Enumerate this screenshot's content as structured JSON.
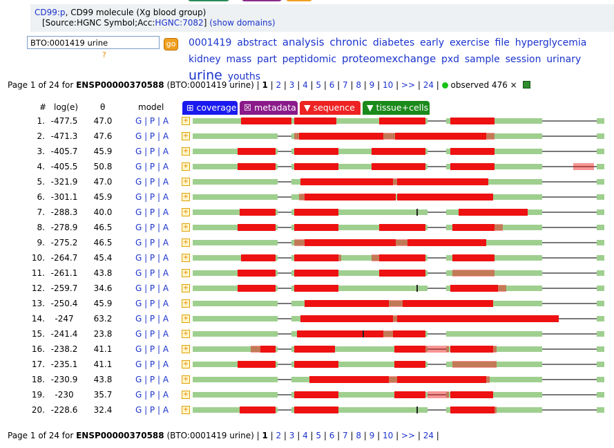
{
  "gene_link": "CD99:p",
  "gene_desc": ", CD99 molecule (Xg blood group)",
  "source_prefix": "[Source:HGNC Symbol;Acc:",
  "source_link": "HGNC:7082",
  "source_suffix": "]",
  "show_domains": "(show domains)",
  "search_value": "BTO:0001419 urine",
  "go_label": "go",
  "help_label": "?",
  "cloud": [
    {
      "text": "0001419",
      "size": 14
    },
    {
      "text": "abstract",
      "size": 14
    },
    {
      "text": "analysis",
      "size": 15
    },
    {
      "text": "chronic",
      "size": 15
    },
    {
      "text": "diabetes",
      "size": 14
    },
    {
      "text": "early",
      "size": 14
    },
    {
      "text": "exercise",
      "size": 14
    },
    {
      "text": "file",
      "size": 14
    },
    {
      "text": "hyperglycemia",
      "size": 14
    },
    {
      "text": "kidney",
      "size": 14
    },
    {
      "text": "mass",
      "size": 14
    },
    {
      "text": "part",
      "size": 14
    },
    {
      "text": "peptidomic",
      "size": 14
    },
    {
      "text": "proteomexchange",
      "size": 15
    },
    {
      "text": "pxd",
      "size": 14
    },
    {
      "text": "sample",
      "size": 14
    },
    {
      "text": "session",
      "size": 14
    },
    {
      "text": "urinary",
      "size": 14
    },
    {
      "text": "urine",
      "size": 19
    },
    {
      "text": "youths",
      "size": 14
    }
  ],
  "pager": {
    "prefix": "Page 1 of 24 for ",
    "protein": "ENSP00000370588",
    "query": " (BTO:0001419 urine) | ",
    "current": "1",
    "pages": [
      "2",
      "3",
      "4",
      "5",
      "6",
      "7",
      "8",
      "9",
      "10",
      ">>",
      "24"
    ],
    "observed": "observed 476 ×"
  },
  "headers": {
    "num": "#",
    "loge": "log(e)",
    "theta": "θ",
    "model": "model"
  },
  "tabs": [
    {
      "label": "⊞ coverage",
      "color": "#1a1aee"
    },
    {
      "label": "☒ metadata",
      "color": "#8a1a8a"
    },
    {
      "label": "▼ sequence",
      "color": "#ee2222"
    },
    {
      "label": "▼ tissue+cells",
      "color": "#1a8a1a"
    }
  ],
  "model_links": {
    "g": "G",
    "p": "P",
    "a": "A"
  },
  "rows": [
    {
      "num": "1.",
      "loge": "-477.5",
      "theta": "47.0"
    },
    {
      "num": "2.",
      "loge": "-471.3",
      "theta": "47.6"
    },
    {
      "num": "3.",
      "loge": "-405.7",
      "theta": "45.9"
    },
    {
      "num": "4.",
      "loge": "-405.5",
      "theta": "50.8"
    },
    {
      "num": "5.",
      "loge": "-321.9",
      "theta": "47.0"
    },
    {
      "num": "6.",
      "loge": "-301.1",
      "theta": "45.9"
    },
    {
      "num": "7.",
      "loge": "-288.3",
      "theta": "40.0"
    },
    {
      "num": "8.",
      "loge": "-278.9",
      "theta": "46.5"
    },
    {
      "num": "9.",
      "loge": "-275.2",
      "theta": "46.5"
    },
    {
      "num": "10.",
      "loge": "-264.7",
      "theta": "45.4"
    },
    {
      "num": "11.",
      "loge": "-261.1",
      "theta": "43.8"
    },
    {
      "num": "12.",
      "loge": "-259.7",
      "theta": "34.6"
    },
    {
      "num": "13.",
      "loge": "-250.4",
      "theta": "45.9"
    },
    {
      "num": "14.",
      "loge": "-247",
      "theta": "63.2"
    },
    {
      "num": "15.",
      "loge": "-241.4",
      "theta": "23.8"
    },
    {
      "num": "16.",
      "loge": "-238.2",
      "theta": "41.1"
    },
    {
      "num": "17.",
      "loge": "-235.1",
      "theta": "41.1"
    },
    {
      "num": "18.",
      "loge": "-230.9",
      "theta": "43.8"
    },
    {
      "num": "19.",
      "loge": "-230",
      "theta": "35.7"
    },
    {
      "num": "20.",
      "loge": "-228.6",
      "theta": "32.4"
    }
  ],
  "colors": {
    "coverage_red": "#ee1111",
    "domain_green": "#9fcf8f",
    "backbone": "#777777"
  }
}
